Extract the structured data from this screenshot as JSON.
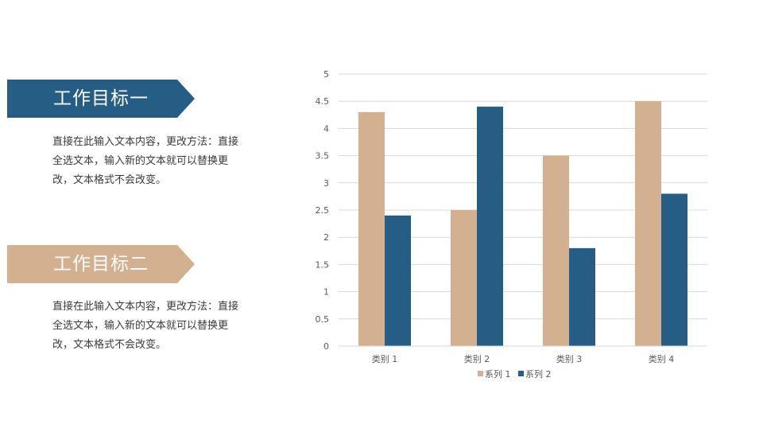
{
  "goals": [
    {
      "title": "工作目标一",
      "description": "直接在此输入文本内容，更改方法：直接全选文本，输入新的文本就可以替换更改，文本格式不会改变。",
      "color": "#265d85"
    },
    {
      "title": "工作目标二",
      "description": "直接在此输入文本内容，更改方法：直接全选文本，输入新的文本就可以替换更改，文本格式不会改变。",
      "color": "#d3b08f"
    }
  ],
  "chart_data": {
    "type": "bar",
    "categories": [
      "类别 1",
      "类别 2",
      "类别 3",
      "类别 4"
    ],
    "series": [
      {
        "name": "系列 1",
        "values": [
          4.3,
          2.5,
          3.5,
          4.5
        ],
        "color": "#d3b08f"
      },
      {
        "name": "系列 2",
        "values": [
          2.4,
          4.4,
          1.8,
          2.8
        ],
        "color": "#265d85"
      }
    ],
    "yticks": [
      "0",
      "0.5",
      "1",
      "1.5",
      "2",
      "2.5",
      "3",
      "3.5",
      "4",
      "4.5",
      "5"
    ],
    "ylim": [
      0,
      5
    ],
    "grid": true,
    "legend": "bottom"
  }
}
